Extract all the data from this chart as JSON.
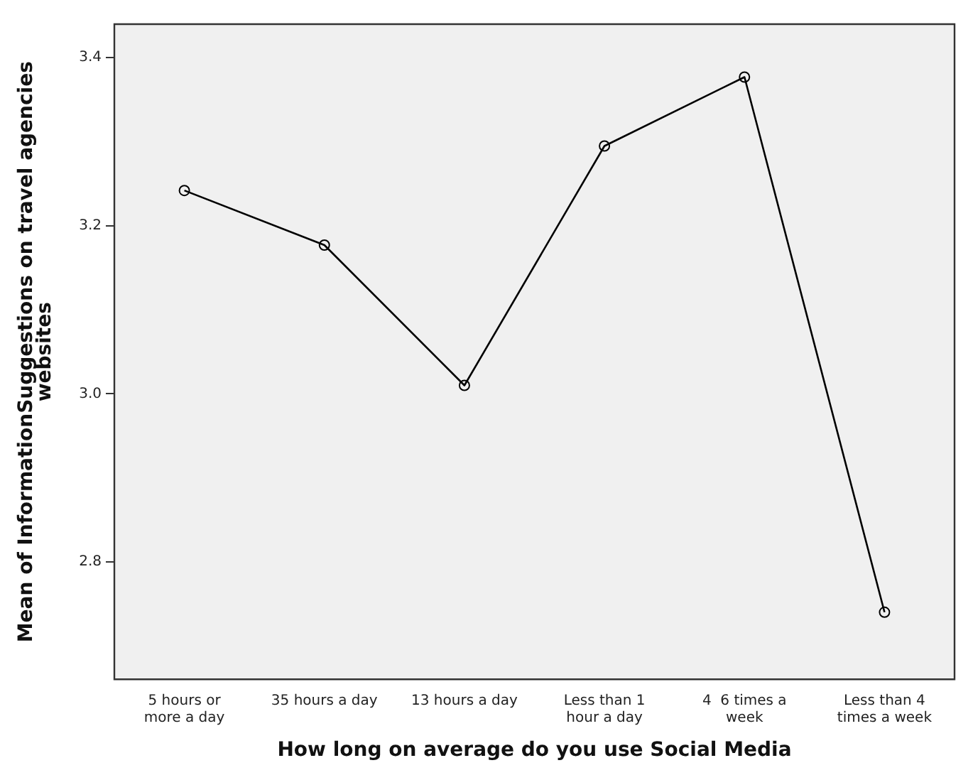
{
  "chart_data": {
    "type": "line",
    "xlabel": "How long on average do you use Social Media",
    "ylabel": "Mean of InformationSuggestions on travel agencies websites",
    "categories": [
      "5 hours or more a day",
      "35 hours a day",
      "13 hours a day",
      "Less than 1 hour a day",
      "4  6 times a week",
      "Less than 4 times a week"
    ],
    "values": [
      3.242,
      3.177,
      3.01,
      3.295,
      3.377,
      2.74
    ],
    "color": "#000000",
    "marker": "circle",
    "line_style": "solid",
    "grid": false,
    "legend": false,
    "ylim": [
      2.66,
      3.44
    ],
    "yticks": [
      2.8,
      {
        "value": 3,
        "label": "3.0"
      },
      3.2,
      3.4
    ]
  }
}
